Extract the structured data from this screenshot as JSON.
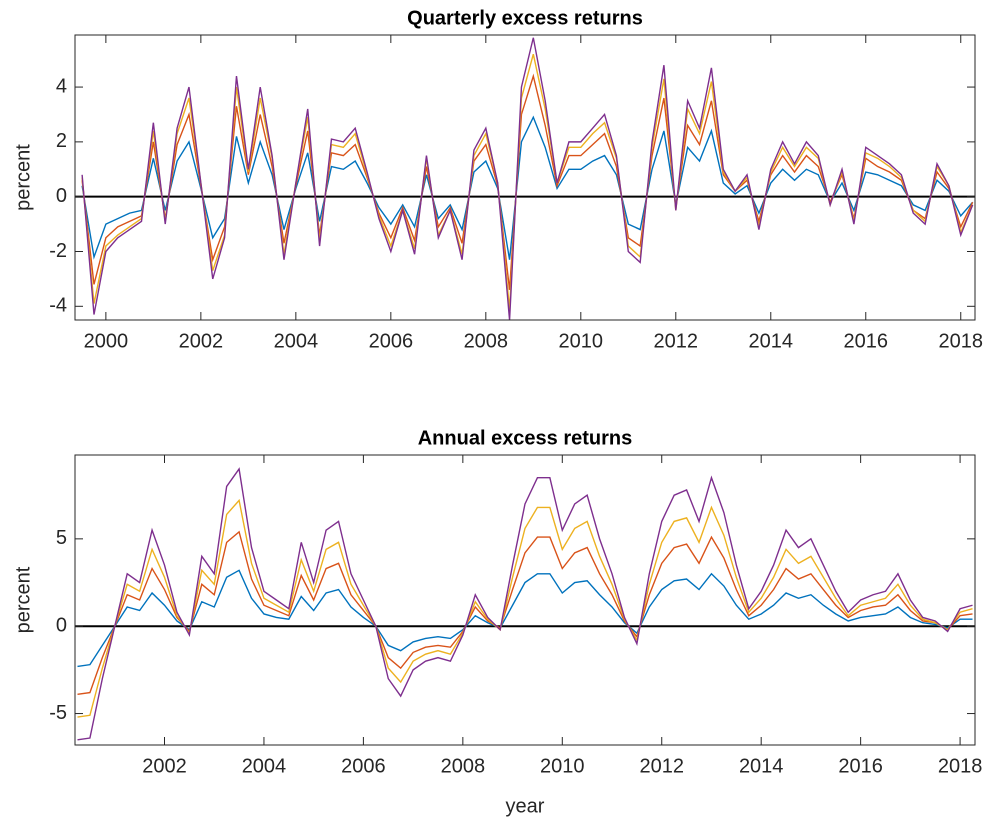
{
  "chart_data": [
    {
      "type": "line",
      "title": "Quarterly excess returns",
      "ylabel": "percent",
      "x": [
        1999.5,
        1999.75,
        2000,
        2000.25,
        2000.5,
        2000.75,
        2001,
        2001.25,
        2001.5,
        2001.75,
        2002,
        2002.25,
        2002.5,
        2002.75,
        2003,
        2003.25,
        2003.5,
        2003.75,
        2004,
        2004.25,
        2004.5,
        2004.75,
        2005,
        2005.25,
        2005.5,
        2005.75,
        2006,
        2006.25,
        2006.5,
        2006.75,
        2007,
        2007.25,
        2007.5,
        2007.75,
        2008,
        2008.25,
        2008.5,
        2008.75,
        2009,
        2009.25,
        2009.5,
        2009.75,
        2010,
        2010.25,
        2010.5,
        2010.75,
        2011,
        2011.25,
        2011.5,
        2011.75,
        2012,
        2012.25,
        2012.5,
        2012.75,
        2013,
        2013.25,
        2013.5,
        2013.75,
        2014,
        2014.25,
        2014.5,
        2014.75,
        2015,
        2015.25,
        2015.5,
        2015.75,
        2016,
        2016.25,
        2016.5,
        2016.75,
        2017,
        2017.25,
        2017.5,
        2017.75,
        2018,
        2018.25
      ],
      "series": [
        {
          "color": "#0072bd",
          "values": [
            0.4,
            -2.2,
            -1.0,
            -0.8,
            -0.6,
            -0.5,
            1.4,
            -0.5,
            1.3,
            2.0,
            0.3,
            -1.5,
            -0.8,
            2.2,
            0.5,
            2.0,
            0.8,
            -1.2,
            0.3,
            1.6,
            -0.9,
            1.1,
            1.0,
            1.3,
            0.5,
            -0.4,
            -1.0,
            -0.3,
            -1.1,
            0.8,
            -0.8,
            -0.3,
            -1.2,
            0.9,
            1.3,
            0.3,
            -2.3,
            2.0,
            2.9,
            1.8,
            0.3,
            1.0,
            1.0,
            1.3,
            1.5,
            0.8,
            -1.0,
            -1.2,
            1.0,
            2.4,
            -0.3,
            1.8,
            1.3,
            2.4,
            0.5,
            0.1,
            0.4,
            -0.6,
            0.5,
            1.0,
            0.6,
            1.0,
            0.8,
            -0.2,
            0.5,
            -0.5,
            0.9,
            0.8,
            0.6,
            0.4,
            -0.3,
            -0.5,
            0.6,
            0.2,
            -0.7,
            -0.2
          ]
        },
        {
          "color": "#d95319",
          "values": [
            0.6,
            -3.2,
            -1.5,
            -1.1,
            -0.9,
            -0.7,
            2.0,
            -0.8,
            1.9,
            3.0,
            0.4,
            -2.3,
            -1.1,
            3.3,
            0.8,
            3.0,
            1.1,
            -1.7,
            0.4,
            2.4,
            -1.4,
            1.6,
            1.5,
            1.9,
            0.7,
            -0.6,
            -1.5,
            -0.4,
            -1.6,
            1.1,
            -1.1,
            -0.4,
            -1.7,
            1.3,
            1.9,
            0.4,
            -3.4,
            3.0,
            4.4,
            2.6,
            0.4,
            1.5,
            1.5,
            1.9,
            2.3,
            1.1,
            -1.5,
            -1.8,
            1.5,
            3.6,
            -0.4,
            2.6,
            1.9,
            3.5,
            0.8,
            0.2,
            0.6,
            -0.9,
            0.8,
            1.5,
            0.9,
            1.5,
            1.1,
            -0.2,
            0.8,
            -0.8,
            1.4,
            1.1,
            0.9,
            0.6,
            -0.5,
            -0.8,
            0.9,
            0.3,
            -1.1,
            -0.2
          ]
        },
        {
          "color": "#edb120",
          "values": [
            0.7,
            -3.9,
            -1.8,
            -1.4,
            -1.1,
            -0.8,
            2.4,
            -0.9,
            2.3,
            3.6,
            0.5,
            -2.7,
            -1.4,
            4.0,
            0.9,
            3.6,
            1.4,
            -2.1,
            0.5,
            2.9,
            -1.6,
            1.9,
            1.8,
            2.3,
            0.8,
            -0.7,
            -1.8,
            -0.5,
            -1.9,
            1.4,
            -1.4,
            -0.5,
            -2.1,
            1.5,
            2.3,
            0.5,
            -4.1,
            3.6,
            5.2,
            3.2,
            0.5,
            1.8,
            1.8,
            2.3,
            2.7,
            1.4,
            -1.8,
            -2.2,
            1.8,
            4.3,
            -0.5,
            3.2,
            2.3,
            4.2,
            0.9,
            0.2,
            0.7,
            -1.1,
            0.9,
            1.8,
            1.1,
            1.8,
            1.4,
            -0.3,
            0.9,
            -0.9,
            1.6,
            1.4,
            1.1,
            0.7,
            -0.5,
            -0.9,
            1.1,
            0.4,
            -1.3,
            -0.3
          ]
        },
        {
          "color": "#7e2f8e",
          "values": [
            0.8,
            -4.3,
            -2.0,
            -1.5,
            -1.2,
            -0.9,
            2.7,
            -1.0,
            2.5,
            4.0,
            0.5,
            -3.0,
            -1.5,
            4.4,
            1.0,
            4.0,
            1.5,
            -2.3,
            0.5,
            3.2,
            -1.8,
            2.1,
            2.0,
            2.5,
            0.9,
            -0.8,
            -2.0,
            -0.5,
            -2.1,
            1.5,
            -1.5,
            -0.5,
            -2.3,
            1.7,
            2.5,
            0.5,
            -4.5,
            4.0,
            5.8,
            3.5,
            0.5,
            2.0,
            2.0,
            2.5,
            3.0,
            1.5,
            -2.0,
            -2.4,
            2.0,
            4.8,
            -0.5,
            3.5,
            2.5,
            4.7,
            1.0,
            0.2,
            0.8,
            -1.2,
            1.0,
            2.0,
            1.2,
            2.0,
            1.5,
            -0.3,
            1.0,
            -1.0,
            1.8,
            1.5,
            1.2,
            0.8,
            -0.6,
            -1.0,
            1.2,
            0.4,
            -1.4,
            -0.3
          ]
        }
      ],
      "xlim": [
        1999.35,
        2018.3
      ],
      "xticks": [
        2000,
        2002,
        2004,
        2006,
        2008,
        2010,
        2012,
        2014,
        2016,
        2018
      ],
      "ylim": [
        -4.5,
        5.9
      ],
      "yticks": [
        -4,
        -2,
        0,
        2,
        4
      ],
      "grid": false
    },
    {
      "type": "line",
      "title": "Annual excess returns",
      "ylabel": "percent",
      "xlabel": "year",
      "x": [
        2000.25,
        2000.5,
        2000.75,
        2001,
        2001.25,
        2001.5,
        2001.75,
        2002,
        2002.25,
        2002.5,
        2002.75,
        2003,
        2003.25,
        2003.5,
        2003.75,
        2004,
        2004.25,
        2004.5,
        2004.75,
        2005,
        2005.25,
        2005.5,
        2005.75,
        2006,
        2006.25,
        2006.5,
        2006.75,
        2007,
        2007.25,
        2007.5,
        2007.75,
        2008,
        2008.25,
        2008.5,
        2008.75,
        2009,
        2009.25,
        2009.5,
        2009.75,
        2010,
        2010.25,
        2010.5,
        2010.75,
        2011,
        2011.25,
        2011.5,
        2011.75,
        2012,
        2012.25,
        2012.5,
        2012.75,
        2013,
        2013.25,
        2013.5,
        2013.75,
        2014,
        2014.25,
        2014.5,
        2014.75,
        2015,
        2015.25,
        2015.5,
        2015.75,
        2016,
        2016.25,
        2016.5,
        2016.75,
        2017,
        2017.25,
        2017.5,
        2017.75,
        2018,
        2018.25
      ],
      "series": [
        {
          "color": "#0072bd",
          "values": [
            -2.3,
            -2.2,
            -1.1,
            0.0,
            1.1,
            0.9,
            1.9,
            1.2,
            0.3,
            -0.2,
            1.4,
            1.1,
            2.8,
            3.2,
            1.6,
            0.7,
            0.5,
            0.4,
            1.7,
            0.9,
            1.9,
            2.1,
            1.1,
            0.5,
            0.0,
            -1.1,
            -1.4,
            -0.9,
            -0.7,
            -0.6,
            -0.7,
            -0.2,
            0.6,
            0.2,
            -0.1,
            1.2,
            2.5,
            3.0,
            3.0,
            1.9,
            2.5,
            2.6,
            1.8,
            1.1,
            0.2,
            -0.4,
            1.1,
            2.1,
            2.6,
            2.7,
            2.1,
            3.0,
            2.3,
            1.2,
            0.4,
            0.7,
            1.2,
            1.9,
            1.6,
            1.8,
            1.2,
            0.7,
            0.3,
            0.5,
            0.6,
            0.7,
            1.1,
            0.5,
            0.2,
            0.1,
            -0.1,
            0.4,
            0.4
          ]
        },
        {
          "color": "#d95319",
          "values": [
            -3.9,
            -3.8,
            -1.8,
            0.0,
            1.8,
            1.5,
            3.3,
            2.1,
            0.5,
            -0.3,
            2.4,
            1.8,
            4.8,
            5.4,
            2.7,
            1.2,
            0.9,
            0.6,
            2.9,
            1.5,
            3.3,
            3.6,
            1.8,
            0.9,
            0.0,
            -1.8,
            -2.4,
            -1.5,
            -1.2,
            -1.1,
            -1.2,
            -0.3,
            1.1,
            0.3,
            -0.1,
            2.1,
            4.2,
            5.1,
            5.1,
            3.3,
            4.2,
            4.5,
            3.0,
            1.8,
            0.3,
            -0.6,
            1.8,
            3.6,
            4.5,
            4.7,
            3.6,
            5.1,
            3.9,
            2.1,
            0.6,
            1.2,
            2.1,
            3.3,
            2.7,
            3.0,
            2.1,
            1.2,
            0.5,
            0.9,
            1.1,
            1.2,
            1.8,
            0.9,
            0.3,
            0.2,
            -0.2,
            0.6,
            0.7
          ]
        },
        {
          "color": "#edb120",
          "values": [
            -5.2,
            -5.1,
            -2.4,
            0.0,
            2.4,
            2.0,
            4.4,
            2.8,
            0.6,
            -0.4,
            3.2,
            2.4,
            6.4,
            7.2,
            3.6,
            1.6,
            1.2,
            0.8,
            3.8,
            2.0,
            4.4,
            4.8,
            2.4,
            1.2,
            0.0,
            -2.4,
            -3.2,
            -2.0,
            -1.6,
            -1.4,
            -1.6,
            -0.4,
            1.4,
            0.4,
            -0.2,
            2.8,
            5.6,
            6.8,
            6.8,
            4.4,
            5.6,
            6.0,
            4.0,
            2.4,
            0.4,
            -0.8,
            2.4,
            4.8,
            6.0,
            6.2,
            4.8,
            6.8,
            5.2,
            2.8,
            0.8,
            1.6,
            2.8,
            4.4,
            3.6,
            4.0,
            2.8,
            1.6,
            0.6,
            1.2,
            1.4,
            1.6,
            2.4,
            1.2,
            0.4,
            0.2,
            -0.2,
            0.8,
            1.0
          ]
        },
        {
          "color": "#7e2f8e",
          "values": [
            -6.5,
            -6.4,
            -3.0,
            0.0,
            3.0,
            2.5,
            5.5,
            3.5,
            0.8,
            -0.5,
            4.0,
            3.0,
            8.0,
            9.0,
            4.5,
            2.0,
            1.5,
            1.0,
            4.8,
            2.5,
            5.5,
            6.0,
            3.0,
            1.5,
            0.0,
            -3.0,
            -4.0,
            -2.5,
            -2.0,
            -1.8,
            -2.0,
            -0.5,
            1.8,
            0.5,
            -0.2,
            3.5,
            7.0,
            8.5,
            8.5,
            5.5,
            7.0,
            7.5,
            5.0,
            3.0,
            0.5,
            -1.0,
            3.0,
            6.0,
            7.5,
            7.8,
            6.0,
            8.5,
            6.5,
            3.5,
            1.0,
            2.0,
            3.5,
            5.5,
            4.5,
            5.0,
            3.5,
            2.0,
            0.8,
            1.5,
            1.8,
            2.0,
            3.0,
            1.5,
            0.5,
            0.3,
            -0.3,
            1.0,
            1.2
          ]
        }
      ],
      "xlim": [
        2000.2,
        2018.3
      ],
      "xticks": [
        2002,
        2004,
        2006,
        2008,
        2010,
        2012,
        2014,
        2016,
        2018
      ],
      "ylim": [
        -6.8,
        9.8
      ],
      "yticks": [
        -5,
        0,
        5
      ],
      "grid": false
    }
  ]
}
